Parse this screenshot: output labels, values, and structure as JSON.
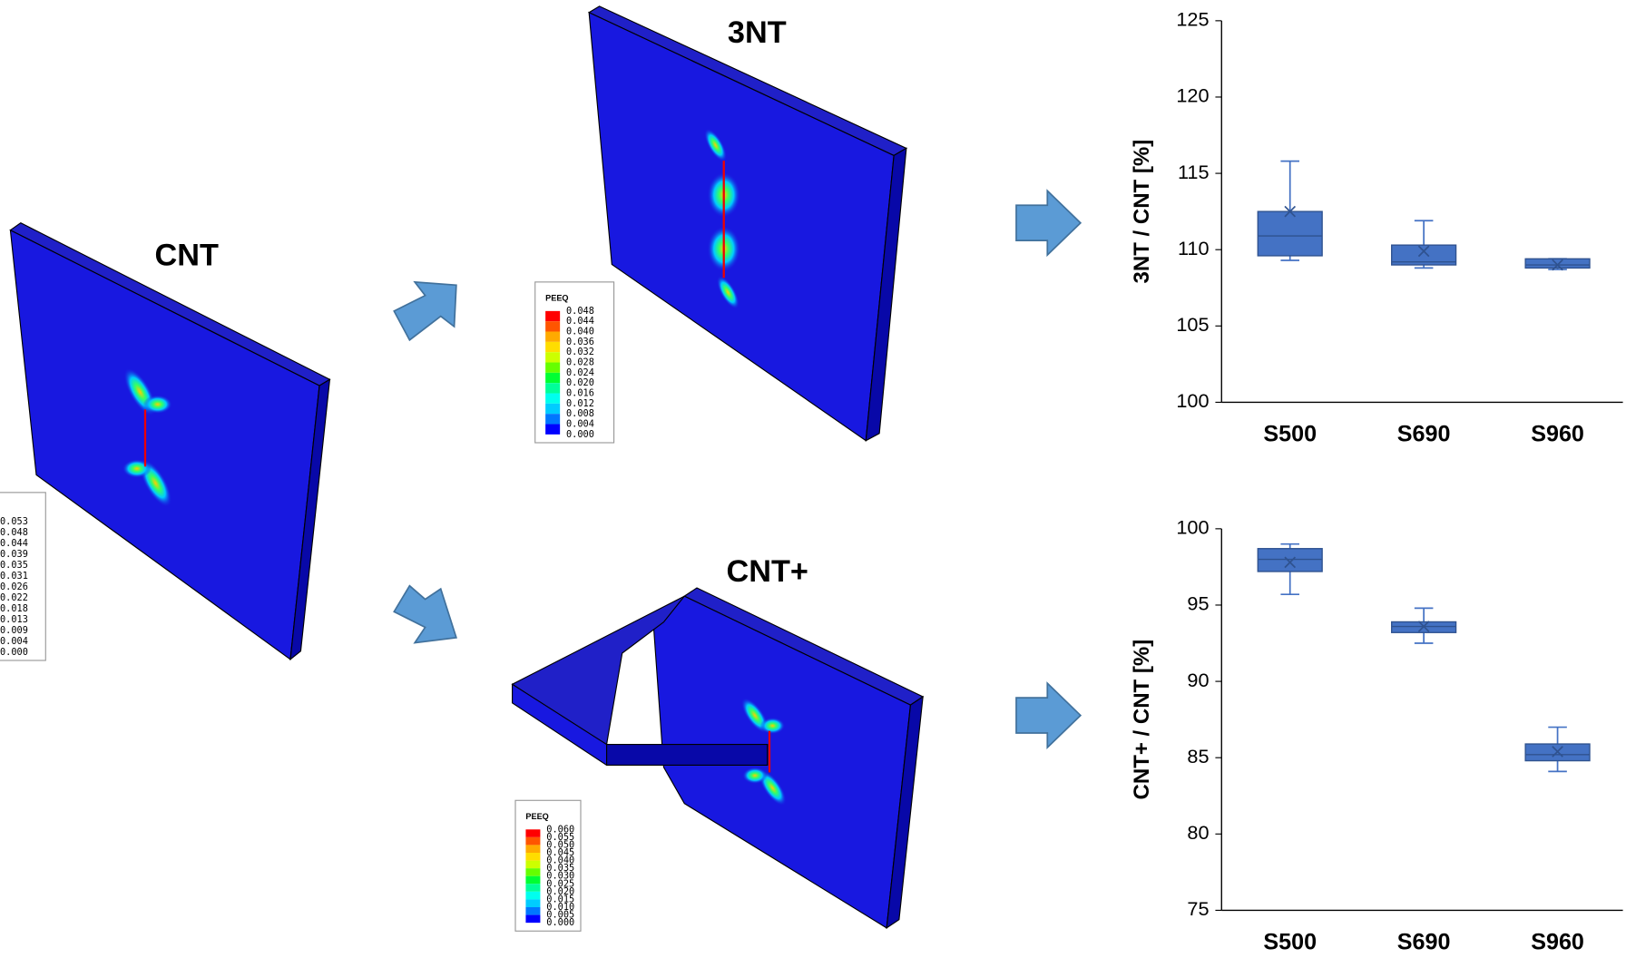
{
  "figure": {
    "panels": [
      {
        "label": "CNT",
        "legend": {
          "values": [
            "0.053",
            "0.048",
            "0.044",
            "0.039",
            "0.035",
            "0.031",
            "0.026",
            "0.022",
            "0.018",
            "0.013",
            "0.009",
            "0.004",
            "0.000"
          ]
        }
      },
      {
        "label": "3NT",
        "legend": {
          "title": "PEEQ",
          "values": [
            "0.048",
            "0.044",
            "0.040",
            "0.036",
            "0.032",
            "0.028",
            "0.024",
            "0.020",
            "0.016",
            "0.012",
            "0.008",
            "0.004",
            "0.000"
          ]
        }
      },
      {
        "label": "CNT+",
        "legend": {
          "title": "PEEQ",
          "values": [
            "0.060",
            "0.055",
            "0.050",
            "0.045",
            "0.040",
            "0.035",
            "0.030",
            "0.025",
            "0.020",
            "0.015",
            "0.010",
            "0.005",
            "0.000"
          ]
        }
      }
    ]
  },
  "chart_data": [
    {
      "type": "box",
      "y_label": "3NT / CNT  [%]",
      "color": "#4472c4",
      "categories": [
        "S500",
        "S690",
        "S960"
      ],
      "boxes": [
        {
          "min": 109.3,
          "q1": 109.6,
          "median": 110.9,
          "q3": 112.5,
          "max": 115.8,
          "mean": 112.5
        },
        {
          "min": 108.8,
          "q1": 109.0,
          "median": 109.2,
          "q3": 110.3,
          "max": 111.9,
          "mean": 109.9
        },
        {
          "min": 108.7,
          "q1": 108.8,
          "median": 109.0,
          "q3": 109.4,
          "max": 109.4,
          "mean": 109.0
        }
      ],
      "ylim": [
        100,
        125
      ],
      "yticks": [
        100,
        105,
        110,
        115,
        120,
        125
      ]
    },
    {
      "type": "box",
      "y_label": "CNT+ / CNT  [%]",
      "color": "#4472c4",
      "categories": [
        "S500",
        "S690",
        "S960"
      ],
      "boxes": [
        {
          "min": 95.7,
          "q1": 97.2,
          "median": 98.0,
          "q3": 98.7,
          "max": 99.0,
          "mean": 97.8
        },
        {
          "min": 92.5,
          "q1": 93.2,
          "median": 93.6,
          "q3": 93.9,
          "max": 94.8,
          "mean": 93.6
        },
        {
          "min": 84.1,
          "q1": 84.8,
          "median": 85.2,
          "q3": 85.9,
          "max": 87.0,
          "mean": 85.4
        }
      ],
      "ylim": [
        75,
        100
      ],
      "yticks": [
        75,
        80,
        85,
        90,
        95,
        100
      ]
    }
  ]
}
